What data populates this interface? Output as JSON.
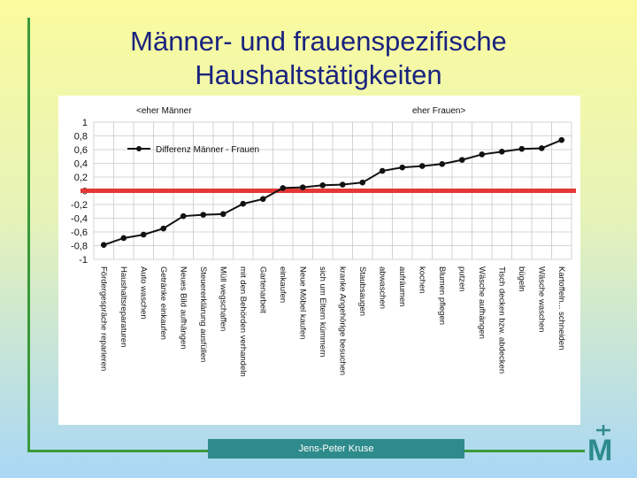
{
  "slide": {
    "title_line1": "Männer- und frauenspezifische",
    "title_line2": "Haushaltstätigkeiten",
    "footer": "Jens-Peter Kruse",
    "logo_letter": "M"
  },
  "colors": {
    "accent_line": "#e53935",
    "series": "#111111",
    "frame": "#3a9a3a",
    "footer_bg": "#2e8b8b"
  },
  "chart_data": {
    "type": "line",
    "legend": "Differenz Männer - Frauen",
    "legend_placement": "top-left",
    "annotation_left": "<eher Männer",
    "annotation_right": "eher Frauen>",
    "ylim": [
      -1,
      1
    ],
    "yticks": [
      "1",
      "0,8",
      "0,6",
      "0,4",
      "0,2",
      "0",
      "-0,2",
      "-0,4",
      "-0,6",
      "-0,8",
      "-1"
    ],
    "grid": true,
    "reference_line_y": 0,
    "categories": [
      "Fördergespräche reparieren",
      "Haushaltsreparaturen",
      "Auto waschen",
      "Getränke einkaufen",
      "Neues Bild aufhängen",
      "Steuererklärung ausfüllen",
      "Müll wegschaffen",
      "mit den Behörden verhandeln",
      "Gartenarbeit",
      "einkaufen",
      "Neue Möbel kaufen",
      "sich um Eltern kümmern",
      "kranke Angehörige besuchen",
      "Staubsaugen",
      "abwaschen",
      "aufräumen",
      "kochen",
      "Blumen pflegen",
      "putzen",
      "Wäsche aufhängen",
      "Tisch decken bzw. abdecken",
      "bügeln",
      "Wäsche waschen",
      "Kartoffeln... schneiden"
    ],
    "series": [
      {
        "values": [
          -0.79,
          -0.69,
          -0.64,
          -0.55,
          -0.37,
          -0.35,
          -0.34,
          -0.19,
          -0.12,
          0.04,
          0.05,
          0.08,
          0.09,
          0.12,
          0.29,
          0.34,
          0.36,
          0.39,
          0.45,
          0.53,
          0.57,
          0.61,
          0.62,
          0.74
        ]
      }
    ]
  }
}
